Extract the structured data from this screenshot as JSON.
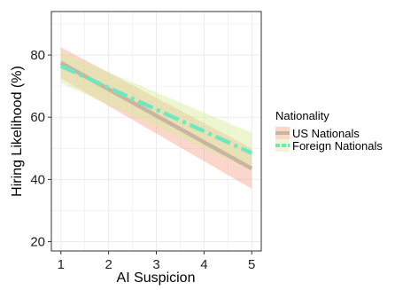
{
  "chart_data": {
    "type": "line",
    "xlabel": "AI Suspicion",
    "ylabel": "Hiring Likelihood (%)",
    "xlim": [
      0.8,
      5.2
    ],
    "ylim": [
      17,
      94
    ],
    "x_ticks": [
      1,
      2,
      3,
      4,
      5
    ],
    "y_ticks": [
      20,
      40,
      60,
      80
    ],
    "grid": true,
    "legend": {
      "title": "Nationality",
      "position": "right"
    },
    "series": [
      {
        "name": "US Nationals",
        "x": [
          1,
          5
        ],
        "y": [
          77.5,
          43.5
        ],
        "ci_lower": [
          72.5,
          37.0
        ],
        "ci_upper": [
          82.5,
          50.0
        ],
        "color": "#c8b6a0",
        "ribbon_color": "#f4a58c",
        "line_style": "solid"
      },
      {
        "name": "Foreign Nationals",
        "x": [
          1,
          5
        ],
        "y": [
          76.5,
          48.5
        ],
        "ci_lower": [
          71.0,
          43.0
        ],
        "ci_upper": [
          81.0,
          55.0
        ],
        "color": "#6ee8c0",
        "ribbon_color": "#d4ee9c",
        "line_style": "dashed"
      }
    ]
  }
}
